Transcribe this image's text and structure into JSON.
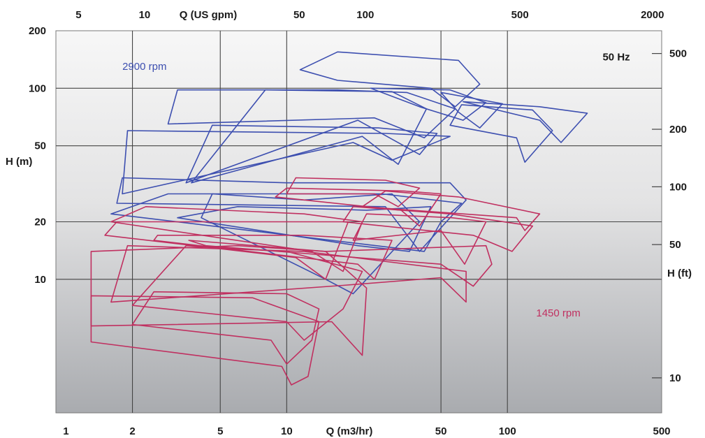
{
  "chart_data": {
    "type": "line",
    "title": "",
    "x_scale": "log",
    "y_scale": "log",
    "grid": true,
    "xlim": [
      0.9,
      500
    ],
    "ylim": [
      2,
      200
    ],
    "xlabel": "Q (m3/hr)",
    "ylabel": "H (m)",
    "x2label": "Q (US gpm)",
    "y2label": "H (ft)",
    "x_ticks": [
      {
        "v": 1,
        "label": "1"
      },
      {
        "v": 2,
        "label": "2"
      },
      {
        "v": 5,
        "label": "5"
      },
      {
        "v": 10,
        "label": "10"
      },
      {
        "v": 50,
        "label": "50"
      },
      {
        "v": 100,
        "label": "100"
      },
      {
        "v": 500,
        "label": "500"
      }
    ],
    "x_axis_label_value": 20,
    "x_gridlines": [
      2,
      5,
      10,
      50,
      100
    ],
    "y_ticks": [
      {
        "v": 200,
        "label": "200"
      },
      {
        "v": 100,
        "label": "100"
      },
      {
        "v": 50,
        "label": "50"
      },
      {
        "v": 20,
        "label": "20"
      },
      {
        "v": 10,
        "label": "10"
      }
    ],
    "y_axis_label_value": 30,
    "y_gridlines": [
      100,
      50,
      20,
      10
    ],
    "x2_ticks": [
      {
        "v": 1.14,
        "label": "5"
      },
      {
        "v": 2.27,
        "label": "10"
      },
      {
        "v": 11.4,
        "label": "50"
      },
      {
        "v": 22.7,
        "label": "100"
      },
      {
        "v": 114,
        "label": "500"
      },
      {
        "v": 454,
        "label": "2000"
      }
    ],
    "x2_axis_label_value": 4.6,
    "y2_ticks": [
      {
        "v": 152,
        "label": "500"
      },
      {
        "v": 61,
        "label": "200"
      },
      {
        "v": 30.5,
        "label": "100"
      },
      {
        "v": 15.2,
        "label": "50"
      },
      {
        "v": 3.05,
        "label": "10"
      }
    ],
    "y2_axis_label_value": 6.1,
    "annotations": [
      {
        "text": "2900 rpm",
        "x": 1.8,
        "y": 125,
        "color": "#3d4fb0"
      },
      {
        "text": "50 Hz",
        "x": 270,
        "y": 140,
        "color": "#1a1a1a"
      },
      {
        "text": "1450 rpm",
        "x": 135,
        "y": 6.4,
        "color": "#c03060"
      }
    ],
    "series": [
      {
        "name": "2900 rpm",
        "color": "#3d4fb0",
        "envelopes": [
          [
            [
              11.5,
              125
            ],
            [
              17,
              155
            ],
            [
              60,
              140
            ],
            [
              75,
              105
            ],
            [
              58,
              80
            ],
            [
              45,
              100
            ],
            [
              17,
              110
            ]
          ],
          [
            [
              3.2,
              98
            ],
            [
              17,
              98
            ],
            [
              35,
              95
            ],
            [
              58,
              78
            ],
            [
              42,
              55
            ],
            [
              25,
              70
            ],
            [
              2.9,
              65
            ]
          ],
          [
            [
              24,
              100
            ],
            [
              55,
              98
            ],
            [
              80,
              84
            ],
            [
              63,
              68
            ],
            [
              40,
              80
            ]
          ],
          [
            [
              50,
              95
            ],
            [
              95,
              83
            ],
            [
              75,
              62
            ],
            [
              60,
              75
            ]
          ],
          [
            [
              63,
              85
            ],
            [
              140,
              80
            ],
            [
              230,
              74
            ],
            [
              175,
              52
            ],
            [
              140,
              68
            ]
          ],
          [
            [
              62,
              82
            ],
            [
              130,
              77
            ],
            [
              160,
              60
            ],
            [
              120,
              41
            ],
            [
              110,
              55
            ],
            [
              55,
              64
            ]
          ],
          [
            [
              8,
              98
            ],
            [
              30,
              96
            ],
            [
              43,
              78
            ],
            [
              32,
              40
            ],
            [
              22,
              56
            ],
            [
              3.7,
              32
            ]
          ],
          [
            [
              4.6,
              64
            ],
            [
              26,
              62
            ],
            [
              48,
              58
            ],
            [
              40,
              45
            ],
            [
              21,
              68
            ],
            [
              3.5,
              32
            ]
          ],
          [
            [
              1.9,
              60
            ],
            [
              28,
              58
            ],
            [
              55,
              56
            ],
            [
              30,
              42
            ],
            [
              20,
              52
            ],
            [
              1.8,
              28
            ]
          ],
          [
            [
              1.8,
              34
            ],
            [
              10,
              32
            ],
            [
              55,
              32
            ],
            [
              65,
              26
            ],
            [
              40,
              14
            ],
            [
              28,
              24
            ],
            [
              1.7,
              25
            ]
          ],
          [
            [
              2.9,
              28
            ],
            [
              27,
              28
            ],
            [
              62,
              25
            ],
            [
              50,
              20
            ],
            [
              42,
              14
            ],
            [
              1.6,
              22
            ]
          ],
          [
            [
              4.6,
              28
            ],
            [
              12,
              26
            ],
            [
              30,
              28
            ],
            [
              40,
              20
            ],
            [
              20,
              8.4
            ],
            [
              15,
              10
            ],
            [
              4.1,
              21
            ]
          ],
          [
            [
              6,
              24
            ],
            [
              23,
              23
            ],
            [
              45,
              24
            ],
            [
              36,
              14
            ],
            [
              21,
              15
            ],
            [
              3.2,
              21
            ]
          ]
        ]
      },
      {
        "name": "1450 rpm",
        "color": "#c03060",
        "envelopes": [
          [
            [
              11,
              34
            ],
            [
              28,
              33
            ],
            [
              40,
              30
            ],
            [
              32,
              24
            ],
            [
              25,
              28
            ],
            [
              10,
              28
            ]
          ],
          [
            [
              10,
              30
            ],
            [
              34,
              29
            ],
            [
              50,
              28
            ],
            [
              40,
              19
            ],
            [
              33,
              23
            ],
            [
              8.9,
              27
            ]
          ],
          [
            [
              28,
              29
            ],
            [
              60,
              27
            ],
            [
              140,
              22
            ],
            [
              120,
              18
            ],
            [
              110,
              21
            ],
            [
              22,
              24
            ]
          ],
          [
            [
              20,
              24
            ],
            [
              55,
              22
            ],
            [
              130,
              19
            ],
            [
              105,
              14
            ],
            [
              70,
              17
            ],
            [
              18,
              20
            ]
          ],
          [
            [
              23,
              22
            ],
            [
              56,
              21
            ],
            [
              80,
              20
            ],
            [
              64,
              12
            ],
            [
              50,
              18
            ],
            [
              20,
              16
            ]
          ],
          [
            [
              2.3,
              24
            ],
            [
              12,
              22
            ],
            [
              22,
              20
            ],
            [
              18,
              11
            ],
            [
              13,
              14
            ],
            [
              1.6,
              20
            ]
          ],
          [
            [
              1.7,
              20
            ],
            [
              9,
              20
            ],
            [
              19,
              20
            ],
            [
              15,
              10
            ],
            [
              11,
              13
            ],
            [
              1.5,
              17
            ]
          ],
          [
            [
              2.6,
              17
            ],
            [
              12,
              17
            ],
            [
              30,
              16
            ],
            [
              25,
              10
            ],
            [
              21,
              12
            ],
            [
              2.5,
              16
            ]
          ],
          [
            [
              3.6,
              16
            ],
            [
              15,
              14
            ],
            [
              80,
              15
            ],
            [
              85,
              12
            ],
            [
              70,
              9.2
            ],
            [
              50,
              12
            ],
            [
              4.3,
              15
            ]
          ],
          [
            [
              1.9,
              15
            ],
            [
              12,
              14
            ],
            [
              65,
              11
            ],
            [
              65,
              7.6
            ],
            [
              50,
              10.2
            ],
            [
              18,
              9.3
            ],
            [
              1.6,
              7.6
            ]
          ],
          [
            [
              3.5,
              15
            ],
            [
              10,
              14
            ],
            [
              22,
              11
            ],
            [
              18,
              7
            ],
            [
              12,
              4.8
            ],
            [
              10,
              6
            ],
            [
              2,
              7.3
            ]
          ],
          [
            [
              1.3,
              14
            ],
            [
              6,
              15
            ],
            [
              15,
              14
            ],
            [
              23,
              9
            ],
            [
              22,
              4
            ],
            [
              16,
              6
            ],
            [
              1.3,
              5.7
            ]
          ],
          [
            [
              2.5,
              8.6
            ],
            [
              10,
              8.4
            ],
            [
              14,
              7
            ],
            [
              13,
              4.8
            ],
            [
              10,
              3.6
            ],
            [
              8.5,
              4.8
            ],
            [
              2,
              5.8
            ]
          ],
          [
            [
              1.3,
              8.2
            ],
            [
              7,
              8
            ],
            [
              14,
              6
            ],
            [
              12.5,
              3.1
            ],
            [
              10.5,
              2.8
            ],
            [
              9.5,
              3.5
            ],
            [
              1.3,
              4.7
            ]
          ]
        ]
      }
    ]
  }
}
